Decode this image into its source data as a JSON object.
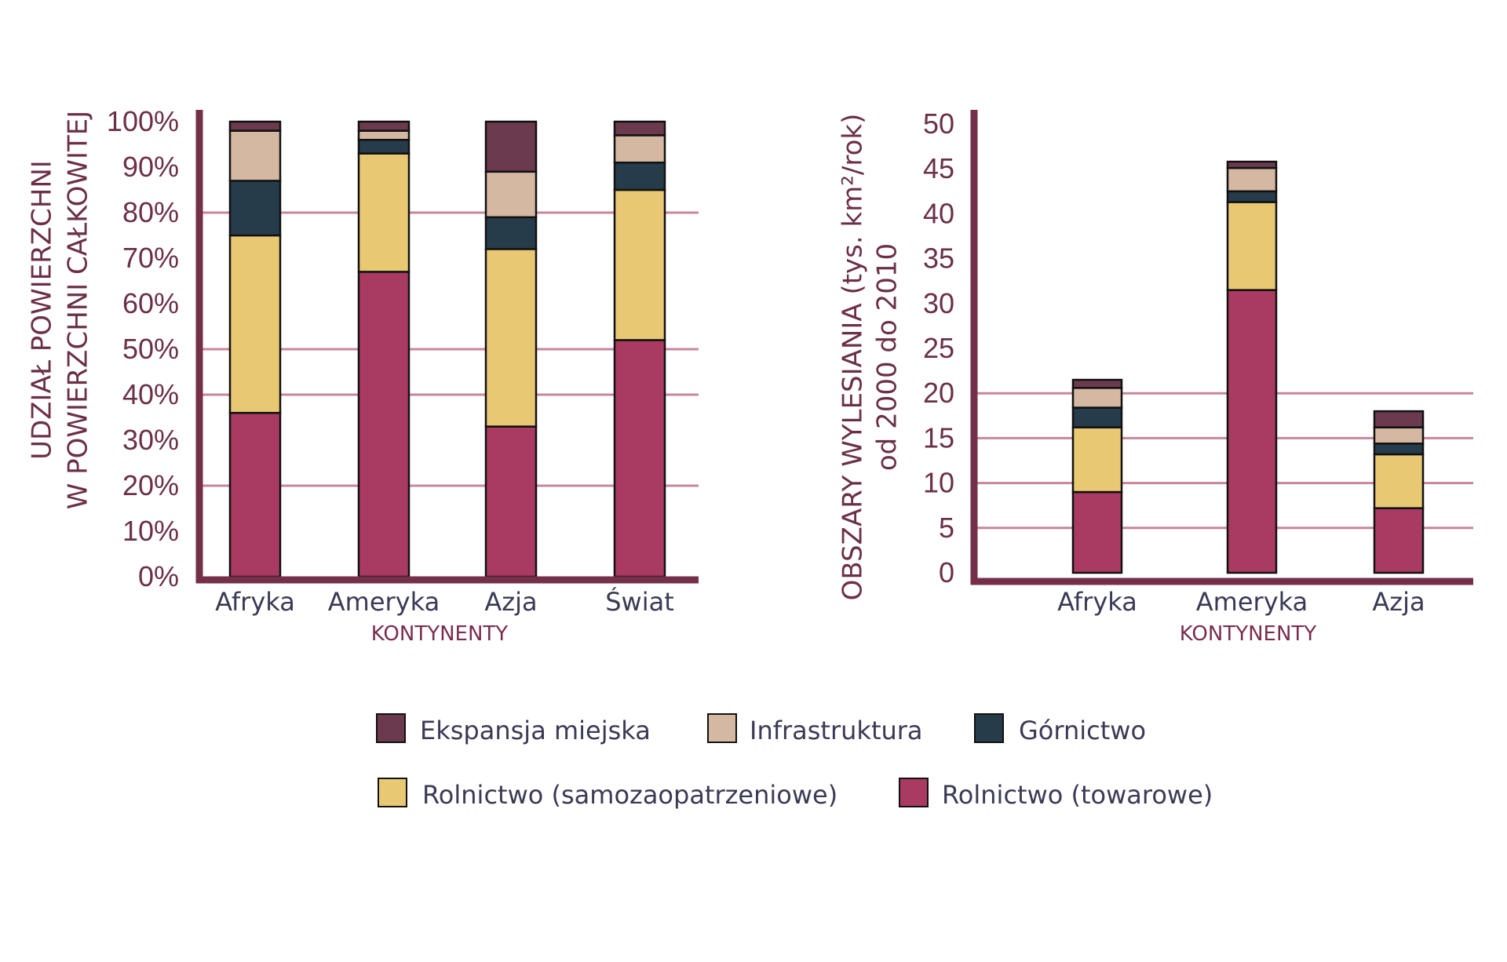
{
  "colors": {
    "axis": "#753049",
    "grid": "#c8869a",
    "outline": "#111111",
    "Ekspansja miejska": "#6b3a4e",
    "Infrastruktura": "#d4b8a1",
    "Górnictwo": "#263c4a",
    "Rolnictwo (samozaopatrzeniowe)": "#e8c873",
    "Rolnictwo (towarowe)": "#a93a61"
  },
  "legend": {
    "items": [
      {
        "label": "Ekspansja miejska",
        "icon": "swatch-urban"
      },
      {
        "label": "Infrastruktura",
        "icon": "swatch-infrastructure"
      },
      {
        "label": "Górnictwo",
        "icon": "swatch-mining"
      },
      {
        "label": "Rolnictwo (samozaopatrzeniowe)",
        "icon": "swatch-subsistence"
      },
      {
        "label": "Rolnictwo (towarowe)",
        "icon": "swatch-commercial"
      }
    ]
  },
  "chart_data": [
    {
      "type": "bar",
      "stacked": true,
      "ylabel_lines": [
        "UDZIAŁ POWIERZCHNI",
        "W POWIERZCHNI CAŁKOWITEJ"
      ],
      "xlabel": "KONTYNENTY",
      "ylim": [
        0,
        100
      ],
      "ytick_values": [
        0,
        10,
        20,
        30,
        40,
        50,
        60,
        70,
        80,
        90,
        100
      ],
      "ytick_labels": [
        "0%",
        "10%",
        "20%",
        "30%",
        "40%",
        "50%",
        "60%",
        "70%",
        "80%",
        "90%",
        "100%"
      ],
      "grid_values": [
        20,
        40,
        50,
        80
      ],
      "categories": [
        "Afryka",
        "Ameryka",
        "Azja",
        "Świat"
      ],
      "series": [
        {
          "name": "Rolnictwo (towarowe)",
          "values": [
            36,
            67,
            33,
            52
          ]
        },
        {
          "name": "Rolnictwo (samozaopatrzeniowe)",
          "values": [
            39,
            26,
            39,
            33
          ]
        },
        {
          "name": "Górnictwo",
          "values": [
            12,
            3,
            7,
            6
          ]
        },
        {
          "name": "Infrastruktura",
          "values": [
            11,
            2,
            10,
            6
          ]
        },
        {
          "name": "Ekspansja miejska",
          "values": [
            2,
            2,
            11,
            3
          ]
        }
      ]
    },
    {
      "type": "bar",
      "stacked": true,
      "ylabel_lines": [
        "OBSZARY WYLESIANIA (tys. km²/rok)",
        "od 2000 do 2010"
      ],
      "xlabel": "KONTYNENTY",
      "ylim": [
        0,
        50
      ],
      "ytick_values": [
        0,
        5,
        10,
        15,
        20,
        25,
        30,
        35,
        40,
        45,
        50
      ],
      "ytick_labels": [
        "0",
        "5",
        "10",
        "15",
        "20",
        "25",
        "30",
        "35",
        "40",
        "45",
        "50"
      ],
      "grid_values": [
        5,
        10,
        15,
        20
      ],
      "categories": [
        "Afryka",
        "Ameryka",
        "Azja"
      ],
      "series": [
        {
          "name": "Rolnictwo (towarowe)",
          "values": [
            9,
            31.5,
            7.2
          ]
        },
        {
          "name": "Rolnictwo (samozaopatrzeniowe)",
          "values": [
            7.2,
            9.8,
            6
          ]
        },
        {
          "name": "Górnictwo",
          "values": [
            2.2,
            1.2,
            1.2
          ]
        },
        {
          "name": "Infrastruktura",
          "values": [
            2.2,
            2.6,
            1.8
          ]
        },
        {
          "name": "Ekspansja miejska",
          "values": [
            0.9,
            0.7,
            1.8
          ]
        }
      ]
    }
  ]
}
